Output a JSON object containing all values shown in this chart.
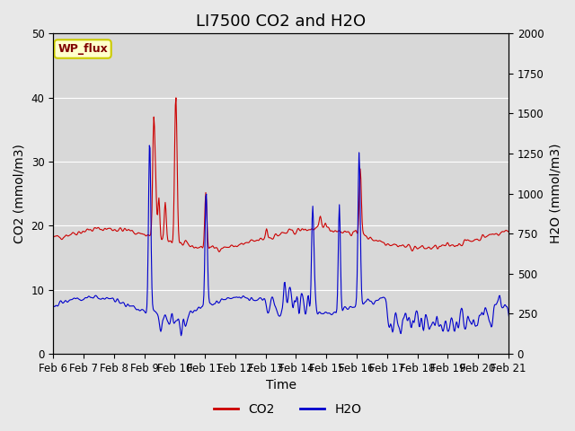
{
  "title": "LI7500 CO2 and H2O",
  "xlabel": "Time",
  "ylabel_left": "CO2 (mmol/m3)",
  "ylabel_right": "H2O (mmol/m3)",
  "ylim_left": [
    0,
    50
  ],
  "ylim_right": [
    0,
    2000
  ],
  "x_tick_labels": [
    "Feb 6",
    "Feb 7",
    "Feb 8",
    "Feb 9",
    "Feb 10",
    "Feb 11",
    "Feb 12",
    "Feb 13",
    "Feb 14",
    "Feb 15",
    "Feb 16",
    "Feb 17",
    "Feb 18",
    "Feb 19",
    "Feb 20",
    "Feb 21"
  ],
  "co2_color": "#cc0000",
  "h2o_color": "#0000cc",
  "bg_color": "#e8e8e8",
  "plot_bg_color": "#d8d8d8",
  "grid_color": "#ffffff",
  "wp_flux_label": "WP_flux",
  "wp_flux_bg": "#ffffcc",
  "wp_flux_border": "#cccc00",
  "wp_flux_text_color": "#800000",
  "legend_co2": "CO2",
  "legend_h2o": "H2O",
  "title_fontsize": 13,
  "axis_label_fontsize": 10,
  "tick_fontsize": 8.5
}
